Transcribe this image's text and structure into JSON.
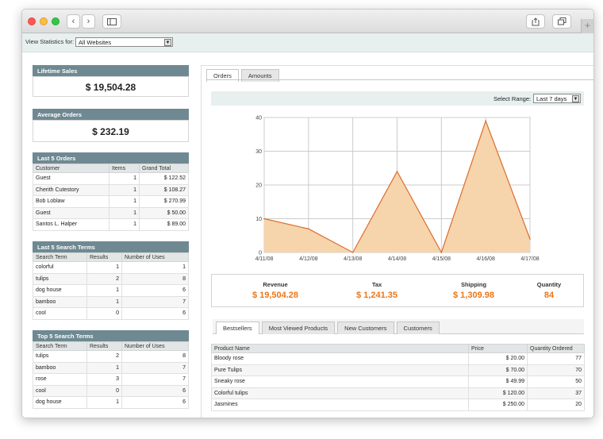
{
  "toolbar": {
    "label": "View Statistics for:",
    "scope_value": "All Websites"
  },
  "lifetime_sales": {
    "title": "Lifetime Sales",
    "value": "$ 19,504.28"
  },
  "average_orders": {
    "title": "Average Orders",
    "value": "$ 232.19"
  },
  "last_orders": {
    "title": "Last 5 Orders",
    "columns": [
      "Customer",
      "Items",
      "Grand Total"
    ],
    "rows": [
      [
        "Guest",
        "1",
        "$ 122.52"
      ],
      [
        "Cherith Cutestory",
        "1",
        "$ 108.27"
      ],
      [
        "Bob Loblaw",
        "1",
        "$ 270.99"
      ],
      [
        "Guest",
        "1",
        "$ 50.00"
      ],
      [
        "Santos L. Halper",
        "1",
        "$ 89.00"
      ]
    ]
  },
  "last_search": {
    "title": "Last 5 Search Terms",
    "columns": [
      "Search Term",
      "Results",
      "Number of Uses"
    ],
    "rows": [
      [
        "colorful",
        "1",
        "1"
      ],
      [
        "tulips",
        "2",
        "8"
      ],
      [
        "dog house",
        "1",
        "6"
      ],
      [
        "bamboo",
        "1",
        "7"
      ],
      [
        "cool",
        "0",
        "6"
      ]
    ]
  },
  "top_search": {
    "title": "Top 5 Search Terms",
    "columns": [
      "Search Term",
      "Results",
      "Number of Uses"
    ],
    "rows": [
      [
        "tulips",
        "2",
        "8"
      ],
      [
        "bamboo",
        "1",
        "7"
      ],
      [
        "rose",
        "3",
        "7"
      ],
      [
        "cool",
        "0",
        "6"
      ],
      [
        "dog house",
        "1",
        "6"
      ]
    ]
  },
  "chart_tabs": [
    "Orders",
    "Amounts"
  ],
  "range": {
    "label": "Select Range:",
    "value": "Last 7 days"
  },
  "chart_data": {
    "type": "area",
    "x": [
      "4/11/08",
      "4/12/08",
      "4/13/08",
      "4/14/08",
      "4/15/08",
      "4/16/08",
      "4/17/08"
    ],
    "values": [
      10,
      7,
      0,
      24,
      0,
      39,
      4
    ],
    "ylim": [
      0,
      40
    ],
    "yticks": [
      0,
      10,
      20,
      30,
      40
    ],
    "grid": true,
    "fill_color": "#f6d4ac",
    "line_color": "#dc6d2b"
  },
  "totals": [
    {
      "label": "Revenue",
      "value": "$ 19,504.28"
    },
    {
      "label": "Tax",
      "value": "$ 1,241.35"
    },
    {
      "label": "Shipping",
      "value": "$ 1,309.98"
    },
    {
      "label": "Quantity",
      "value": "84"
    }
  ],
  "product_tabs": [
    "Bestsellers",
    "Most Viewed Products",
    "New Customers",
    "Customers"
  ],
  "bestsellers": {
    "columns": [
      "Product Name",
      "Price",
      "Quantity Ordered"
    ],
    "rows": [
      [
        "Bloody rose",
        "$ 20.00",
        "77"
      ],
      [
        "Pure Tulips",
        "$ 70.00",
        "70"
      ],
      [
        "Sneaky rose",
        "$ 49.99",
        "50"
      ],
      [
        "Colorful tulips",
        "$ 120.00",
        "37"
      ],
      [
        "Jasmines",
        "$ 250.00",
        "20"
      ]
    ]
  },
  "colors": {
    "accent": "#eb7618",
    "header": "#6f8992"
  }
}
